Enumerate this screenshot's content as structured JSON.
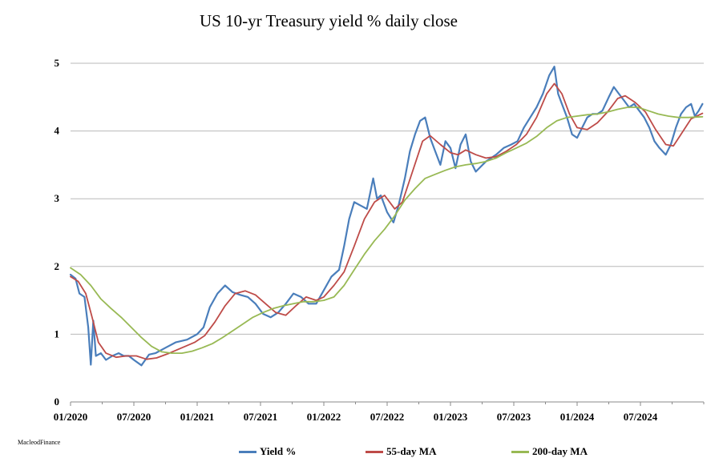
{
  "chart_data": {
    "type": "line",
    "title": "US 10-yr Treasury yield % daily close",
    "xlabel": "",
    "ylabel": "",
    "ylim": [
      0,
      5
    ],
    "yticks": [
      0,
      1,
      2,
      3,
      4,
      5
    ],
    "x_range": [
      2020.0,
      2025.0
    ],
    "xticks": [
      {
        "label": "01/2020",
        "t": 2020.0
      },
      {
        "label": "07/2020",
        "t": 2020.5
      },
      {
        "label": "01/2021",
        "t": 2021.0
      },
      {
        "label": "07/2021",
        "t": 2021.5
      },
      {
        "label": "01/2022",
        "t": 2022.0
      },
      {
        "label": "07/2022",
        "t": 2022.5
      },
      {
        "label": "01/2023",
        "t": 2023.0
      },
      {
        "label": "07/2023",
        "t": 2023.5
      },
      {
        "label": "01/2024",
        "t": 2024.0
      },
      {
        "label": "07/2024",
        "t": 2024.5
      }
    ],
    "grid": true,
    "legend_position": "bottom",
    "series": [
      {
        "name": "Yield %",
        "color": "#4a7ebb",
        "points": [
          [
            2020.0,
            1.88
          ],
          [
            2020.04,
            1.82
          ],
          [
            2020.07,
            1.6
          ],
          [
            2020.11,
            1.55
          ],
          [
            2020.14,
            1.1
          ],
          [
            2020.16,
            0.55
          ],
          [
            2020.18,
            1.2
          ],
          [
            2020.2,
            0.68
          ],
          [
            2020.24,
            0.72
          ],
          [
            2020.28,
            0.62
          ],
          [
            2020.33,
            0.68
          ],
          [
            2020.38,
            0.72
          ],
          [
            2020.42,
            0.68
          ],
          [
            2020.46,
            0.68
          ],
          [
            2020.5,
            0.62
          ],
          [
            2020.56,
            0.54
          ],
          [
            2020.62,
            0.7
          ],
          [
            2020.67,
            0.72
          ],
          [
            2020.75,
            0.8
          ],
          [
            2020.83,
            0.88
          ],
          [
            2020.92,
            0.92
          ],
          [
            2021.0,
            1.0
          ],
          [
            2021.05,
            1.1
          ],
          [
            2021.1,
            1.4
          ],
          [
            2021.16,
            1.6
          ],
          [
            2021.22,
            1.72
          ],
          [
            2021.28,
            1.62
          ],
          [
            2021.34,
            1.58
          ],
          [
            2021.4,
            1.55
          ],
          [
            2021.46,
            1.45
          ],
          [
            2021.52,
            1.3
          ],
          [
            2021.58,
            1.25
          ],
          [
            2021.64,
            1.32
          ],
          [
            2021.7,
            1.45
          ],
          [
            2021.76,
            1.6
          ],
          [
            2021.82,
            1.55
          ],
          [
            2021.88,
            1.45
          ],
          [
            2021.94,
            1.45
          ],
          [
            2022.0,
            1.65
          ],
          [
            2022.06,
            1.85
          ],
          [
            2022.12,
            1.95
          ],
          [
            2022.16,
            2.3
          ],
          [
            2022.2,
            2.7
          ],
          [
            2022.24,
            2.95
          ],
          [
            2022.29,
            2.9
          ],
          [
            2022.34,
            2.85
          ],
          [
            2022.39,
            3.3
          ],
          [
            2022.42,
            3.0
          ],
          [
            2022.45,
            3.05
          ],
          [
            2022.5,
            2.8
          ],
          [
            2022.55,
            2.65
          ],
          [
            2022.59,
            2.9
          ],
          [
            2022.64,
            3.3
          ],
          [
            2022.68,
            3.7
          ],
          [
            2022.72,
            3.95
          ],
          [
            2022.76,
            4.15
          ],
          [
            2022.8,
            4.2
          ],
          [
            2022.84,
            3.9
          ],
          [
            2022.88,
            3.7
          ],
          [
            2022.92,
            3.5
          ],
          [
            2022.96,
            3.85
          ],
          [
            2023.0,
            3.75
          ],
          [
            2023.04,
            3.45
          ],
          [
            2023.08,
            3.8
          ],
          [
            2023.12,
            3.95
          ],
          [
            2023.16,
            3.55
          ],
          [
            2023.2,
            3.4
          ],
          [
            2023.28,
            3.55
          ],
          [
            2023.36,
            3.65
          ],
          [
            2023.42,
            3.75
          ],
          [
            2023.48,
            3.8
          ],
          [
            2023.53,
            3.85
          ],
          [
            2023.58,
            4.05
          ],
          [
            2023.63,
            4.2
          ],
          [
            2023.68,
            4.35
          ],
          [
            2023.73,
            4.55
          ],
          [
            2023.78,
            4.82
          ],
          [
            2023.82,
            4.95
          ],
          [
            2023.85,
            4.55
          ],
          [
            2023.88,
            4.4
          ],
          [
            2023.92,
            4.2
          ],
          [
            2023.96,
            3.95
          ],
          [
            2024.0,
            3.9
          ],
          [
            2024.04,
            4.05
          ],
          [
            2024.08,
            4.2
          ],
          [
            2024.12,
            4.25
          ],
          [
            2024.16,
            4.25
          ],
          [
            2024.2,
            4.3
          ],
          [
            2024.25,
            4.5
          ],
          [
            2024.29,
            4.65
          ],
          [
            2024.33,
            4.55
          ],
          [
            2024.37,
            4.45
          ],
          [
            2024.41,
            4.35
          ],
          [
            2024.45,
            4.4
          ],
          [
            2024.49,
            4.3
          ],
          [
            2024.53,
            4.2
          ],
          [
            2024.57,
            4.05
          ],
          [
            2024.61,
            3.85
          ],
          [
            2024.65,
            3.75
          ],
          [
            2024.7,
            3.65
          ],
          [
            2024.74,
            3.8
          ],
          [
            2024.78,
            4.05
          ],
          [
            2024.82,
            4.25
          ],
          [
            2024.86,
            4.35
          ],
          [
            2024.9,
            4.4
          ],
          [
            2024.93,
            4.22
          ],
          [
            2024.96,
            4.3
          ],
          [
            2024.99,
            4.4
          ]
        ]
      },
      {
        "name": "55-day MA",
        "color": "#be4b48",
        "points": [
          [
            2020.0,
            1.85
          ],
          [
            2020.06,
            1.78
          ],
          [
            2020.12,
            1.6
          ],
          [
            2020.17,
            1.25
          ],
          [
            2020.22,
            0.88
          ],
          [
            2020.28,
            0.72
          ],
          [
            2020.36,
            0.66
          ],
          [
            2020.44,
            0.68
          ],
          [
            2020.52,
            0.68
          ],
          [
            2020.6,
            0.63
          ],
          [
            2020.68,
            0.65
          ],
          [
            2020.78,
            0.72
          ],
          [
            2020.88,
            0.8
          ],
          [
            2020.98,
            0.88
          ],
          [
            2021.06,
            0.98
          ],
          [
            2021.14,
            1.18
          ],
          [
            2021.22,
            1.42
          ],
          [
            2021.3,
            1.6
          ],
          [
            2021.38,
            1.64
          ],
          [
            2021.46,
            1.58
          ],
          [
            2021.54,
            1.45
          ],
          [
            2021.62,
            1.32
          ],
          [
            2021.7,
            1.28
          ],
          [
            2021.78,
            1.42
          ],
          [
            2021.86,
            1.55
          ],
          [
            2021.94,
            1.5
          ],
          [
            2022.0,
            1.55
          ],
          [
            2022.08,
            1.72
          ],
          [
            2022.16,
            1.92
          ],
          [
            2022.24,
            2.3
          ],
          [
            2022.32,
            2.7
          ],
          [
            2022.4,
            2.95
          ],
          [
            2022.48,
            3.05
          ],
          [
            2022.56,
            2.85
          ],
          [
            2022.62,
            2.95
          ],
          [
            2022.7,
            3.4
          ],
          [
            2022.78,
            3.85
          ],
          [
            2022.84,
            3.93
          ],
          [
            2022.92,
            3.8
          ],
          [
            2023.0,
            3.68
          ],
          [
            2023.06,
            3.65
          ],
          [
            2023.12,
            3.72
          ],
          [
            2023.2,
            3.65
          ],
          [
            2023.28,
            3.6
          ],
          [
            2023.36,
            3.62
          ],
          [
            2023.44,
            3.7
          ],
          [
            2023.52,
            3.8
          ],
          [
            2023.6,
            3.95
          ],
          [
            2023.68,
            4.2
          ],
          [
            2023.76,
            4.55
          ],
          [
            2023.82,
            4.7
          ],
          [
            2023.88,
            4.55
          ],
          [
            2023.94,
            4.25
          ],
          [
            2024.0,
            4.05
          ],
          [
            2024.08,
            4.02
          ],
          [
            2024.16,
            4.12
          ],
          [
            2024.24,
            4.28
          ],
          [
            2024.32,
            4.48
          ],
          [
            2024.38,
            4.52
          ],
          [
            2024.46,
            4.42
          ],
          [
            2024.54,
            4.28
          ],
          [
            2024.62,
            4.02
          ],
          [
            2024.7,
            3.8
          ],
          [
            2024.76,
            3.78
          ],
          [
            2024.82,
            3.95
          ],
          [
            2024.9,
            4.18
          ],
          [
            2024.99,
            4.26
          ]
        ]
      },
      {
        "name": "200-day MA",
        "color": "#98b954",
        "points": [
          [
            2020.0,
            1.98
          ],
          [
            2020.08,
            1.88
          ],
          [
            2020.16,
            1.72
          ],
          [
            2020.24,
            1.52
          ],
          [
            2020.32,
            1.38
          ],
          [
            2020.4,
            1.25
          ],
          [
            2020.48,
            1.1
          ],
          [
            2020.56,
            0.95
          ],
          [
            2020.64,
            0.82
          ],
          [
            2020.72,
            0.74
          ],
          [
            2020.8,
            0.72
          ],
          [
            2020.88,
            0.72
          ],
          [
            2020.96,
            0.75
          ],
          [
            2021.04,
            0.8
          ],
          [
            2021.12,
            0.86
          ],
          [
            2021.2,
            0.95
          ],
          [
            2021.28,
            1.05
          ],
          [
            2021.36,
            1.15
          ],
          [
            2021.44,
            1.25
          ],
          [
            2021.52,
            1.32
          ],
          [
            2021.6,
            1.38
          ],
          [
            2021.68,
            1.42
          ],
          [
            2021.76,
            1.45
          ],
          [
            2021.84,
            1.48
          ],
          [
            2021.92,
            1.48
          ],
          [
            2022.0,
            1.5
          ],
          [
            2022.08,
            1.55
          ],
          [
            2022.16,
            1.72
          ],
          [
            2022.24,
            1.95
          ],
          [
            2022.32,
            2.18
          ],
          [
            2022.4,
            2.38
          ],
          [
            2022.48,
            2.55
          ],
          [
            2022.56,
            2.75
          ],
          [
            2022.64,
            2.98
          ],
          [
            2022.72,
            3.15
          ],
          [
            2022.8,
            3.3
          ],
          [
            2022.88,
            3.36
          ],
          [
            2022.96,
            3.42
          ],
          [
            2023.04,
            3.47
          ],
          [
            2023.12,
            3.5
          ],
          [
            2023.2,
            3.52
          ],
          [
            2023.28,
            3.55
          ],
          [
            2023.36,
            3.6
          ],
          [
            2023.44,
            3.68
          ],
          [
            2023.52,
            3.75
          ],
          [
            2023.6,
            3.82
          ],
          [
            2023.68,
            3.92
          ],
          [
            2023.76,
            4.05
          ],
          [
            2023.84,
            4.15
          ],
          [
            2023.92,
            4.2
          ],
          [
            2024.0,
            4.22
          ],
          [
            2024.08,
            4.24
          ],
          [
            2024.16,
            4.25
          ],
          [
            2024.24,
            4.28
          ],
          [
            2024.32,
            4.32
          ],
          [
            2024.4,
            4.35
          ],
          [
            2024.48,
            4.35
          ],
          [
            2024.56,
            4.3
          ],
          [
            2024.64,
            4.25
          ],
          [
            2024.72,
            4.22
          ],
          [
            2024.8,
            4.2
          ],
          [
            2024.88,
            4.2
          ],
          [
            2024.99,
            4.21
          ]
        ]
      }
    ]
  },
  "source_label": "MacleodFinance"
}
